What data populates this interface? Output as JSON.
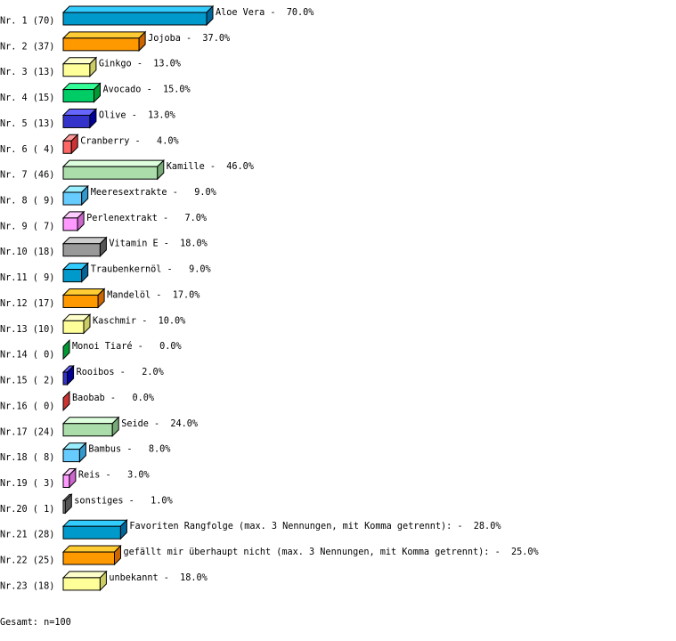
{
  "chart_data": {
    "type": "bar",
    "orientation": "horizontal",
    "style": "3d",
    "categories": [
      "Aloe Vera",
      "Jojoba",
      "Ginkgo",
      "Avocado",
      "Olive",
      "Cranberry",
      "Kamille",
      "Meeresextrakte",
      "Perlenextrakt",
      "Vitamin E",
      "Traubenkernöl",
      "Mandelöl",
      "Kaschmir",
      "Monoi Tiaré",
      "Rooibos",
      "Baobab",
      "Seide",
      "Bambus",
      "Reis",
      "sonstiges",
      "Favoriten Rangfolge (max. 3 Nennungen, mit Komma getrennt):",
      "gefällt mir überhaupt nicht (max. 3 Nennungen, mit Komma getrennt):",
      "unbekannt"
    ],
    "row_labels": [
      "Nr. 1 (70)",
      "Nr. 2 (37)",
      "Nr. 3 (13)",
      "Nr. 4 (15)",
      "Nr. 5 (13)",
      "Nr. 6 ( 4)",
      "Nr. 7 (46)",
      "Nr. 8 ( 9)",
      "Nr. 9 ( 7)",
      "Nr.10 (18)",
      "Nr.11 ( 9)",
      "Nr.12 (17)",
      "Nr.13 (10)",
      "Nr.14 ( 0)",
      "Nr.15 ( 2)",
      "Nr.16 ( 0)",
      "Nr.17 (24)",
      "Nr.18 ( 8)",
      "Nr.19 ( 3)",
      "Nr.20 ( 1)",
      "Nr.21 (28)",
      "Nr.22 (25)",
      "Nr.23 (18)"
    ],
    "values": [
      70,
      37,
      13,
      15,
      13,
      4,
      46,
      9,
      7,
      18,
      9,
      17,
      10,
      0,
      2,
      0,
      24,
      8,
      3,
      1,
      28,
      25,
      18
    ],
    "percent_labels": [
      "70.0%",
      "37.0%",
      "13.0%",
      "15.0%",
      "13.0%",
      "4.0%",
      "46.0%",
      "9.0%",
      "7.0%",
      "18.0%",
      "9.0%",
      "17.0%",
      "10.0%",
      "0.0%",
      "2.0%",
      "0.0%",
      "24.0%",
      "8.0%",
      "3.0%",
      "1.0%",
      "28.0%",
      "25.0%",
      "18.0%"
    ],
    "palette": [
      {
        "front": "#0099cc",
        "top": "#33ccff",
        "side": "#006699"
      },
      {
        "front": "#ff9900",
        "top": "#ffcc33",
        "side": "#cc6600"
      },
      {
        "front": "#ffff99",
        "top": "#ffffcc",
        "side": "#cccc66"
      },
      {
        "front": "#00cc66",
        "top": "#33ff99",
        "side": "#009933"
      },
      {
        "front": "#3333cc",
        "top": "#6666ff",
        "side": "#000099"
      },
      {
        "front": "#ff6666",
        "top": "#ff9999",
        "side": "#cc3333"
      },
      {
        "front": "#aaddaa",
        "top": "#ddffdd",
        "side": "#77aa77"
      },
      {
        "front": "#66ccff",
        "top": "#99eeff",
        "side": "#3399cc"
      },
      {
        "front": "#ff99ff",
        "top": "#ffccff",
        "side": "#cc66cc"
      },
      {
        "front": "#999999",
        "top": "#cccccc",
        "side": "#555555"
      }
    ]
  },
  "footer": {
    "total": "Gesamt: n=100"
  }
}
